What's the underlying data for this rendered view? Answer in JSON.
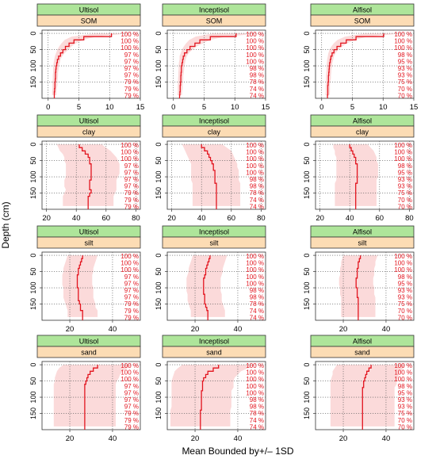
{
  "ylabel": "Depth (cm)",
  "xlabel": "Mean Bounded by+/– 1SD",
  "colors": {
    "strip_top": "#aee59a",
    "strip_var": "#fcdcb4",
    "band": "#fbdada",
    "line": "#e2141e",
    "pct_text": "#e2141e",
    "grid": "#555555"
  },
  "chart_data": {
    "type": "line",
    "orientation": "depth-profile",
    "ylabel": "Depth (cm)",
    "xlabel": "Mean Bounded by+/– 1SD",
    "ylim": [
      200,
      -10
    ],
    "yticks": [
      0,
      50,
      100,
      150
    ],
    "soils": [
      "Ultisol",
      "Inceptisol",
      "Alfisol"
    ],
    "depths": [
      0,
      10,
      20,
      30,
      40,
      50,
      60,
      70,
      80,
      90,
      100,
      110,
      120,
      130,
      140,
      150,
      160,
      170,
      180,
      190
    ],
    "percent_labels": {
      "Ultisol": [
        "100 %",
        "100 %",
        "100 %",
        "97 %",
        "97 %",
        "97 %",
        "97 %",
        "79 %",
        "79 %",
        "79 %"
      ],
      "Inceptisol": [
        "100 %",
        "100 %",
        "100 %",
        "100 %",
        "100 %",
        "98 %",
        "98 %",
        "78 %",
        "74 %",
        "74 %"
      ],
      "Alfisol": [
        "100 %",
        "100 %",
        "100 %",
        "98 %",
        "95 %",
        "93 %",
        "93 %",
        "75 %",
        "70 %",
        "70 %"
      ]
    },
    "panels": [
      {
        "variable": "SOM",
        "xlim": [
          -1,
          15
        ],
        "xticks": [
          0,
          5,
          10,
          15
        ],
        "series": [
          {
            "soil": "Ultisol",
            "mean": [
              10.3,
              5.8,
              4.2,
              3.4,
              2.8,
              2.4,
              2.0,
              1.7,
              1.5,
              1.4,
              1.3,
              1.25,
              1.2,
              1.2,
              1.15,
              1.1,
              1.1,
              1.05,
              1.0,
              1.0
            ],
            "lower": [
              7.6,
              3.8,
              2.7,
              2.2,
              1.8,
              1.5,
              1.3,
              1.1,
              1.0,
              0.9,
              0.85,
              0.8,
              0.8,
              0.75,
              0.75,
              0.7,
              0.7,
              0.7,
              0.65,
              0.65
            ],
            "upper": [
              13.0,
              7.8,
              5.7,
              4.6,
              3.8,
              3.3,
              2.7,
              2.3,
              2.0,
              1.9,
              1.75,
              1.7,
              1.6,
              1.6,
              1.55,
              1.5,
              1.5,
              1.4,
              1.35,
              1.35
            ]
          },
          {
            "soil": "Inceptisol",
            "mean": [
              10.2,
              6.0,
              4.3,
              3.5,
              2.7,
              2.2,
              1.8,
              1.6,
              1.5,
              1.4,
              1.3,
              1.3,
              1.25,
              1.2,
              1.2,
              1.15,
              1.1,
              1.1,
              1.05,
              1.0
            ],
            "lower": [
              6.5,
              3.6,
              2.6,
              2.1,
              1.7,
              1.4,
              1.2,
              1.0,
              1.0,
              0.9,
              0.85,
              0.85,
              0.8,
              0.8,
              0.75,
              0.75,
              0.7,
              0.7,
              0.7,
              0.65
            ],
            "upper": [
              14.0,
              8.5,
              6.0,
              4.9,
              3.8,
              3.1,
              2.5,
              2.2,
              2.0,
              1.9,
              1.8,
              1.75,
              1.7,
              1.6,
              1.6,
              1.55,
              1.5,
              1.5,
              1.4,
              1.4
            ]
          },
          {
            "soil": "Alfisol",
            "mean": [
              10.1,
              5.6,
              4.0,
              3.1,
              2.5,
              2.0,
              1.7,
              1.5,
              1.4,
              1.3,
              1.25,
              1.2,
              1.15,
              1.1,
              1.1,
              1.05,
              1.0,
              1.0,
              1.0,
              0.95
            ],
            "lower": [
              7.0,
              3.8,
              2.6,
              2.0,
              1.6,
              1.3,
              1.1,
              1.0,
              0.9,
              0.85,
              0.8,
              0.8,
              0.75,
              0.7,
              0.7,
              0.7,
              0.65,
              0.65,
              0.65,
              0.6
            ],
            "upper": [
              13.2,
              7.4,
              5.4,
              4.2,
              3.4,
              2.7,
              2.3,
              2.0,
              1.9,
              1.75,
              1.7,
              1.6,
              1.55,
              1.5,
              1.5,
              1.4,
              1.35,
              1.35,
              1.35,
              1.3
            ]
          }
        ]
      },
      {
        "variable": "clay",
        "xlim": [
          17,
          83
        ],
        "xticks": [
          20,
          40,
          60,
          80
        ],
        "series": [
          {
            "soil": "Ultisol",
            "mean": [
              42,
              44,
              46,
              48,
              49,
              49,
              50,
              50,
              50,
              50,
              50,
              49,
              49,
              49,
              50,
              49,
              48,
              48,
              48,
              48
            ],
            "lower": [
              27,
              28,
              29,
              31,
              32,
              32,
              33,
              33,
              33,
              33,
              33,
              32,
              32,
              32,
              33,
              32,
              31,
              31,
              31,
              31
            ],
            "upper": [
              57,
              60,
              63,
              65,
              67,
              68,
              69,
              69,
              69,
              69,
              68,
              67,
              67,
              67,
              67,
              66,
              65,
              65,
              65,
              65
            ]
          },
          {
            "soil": "Inceptisol",
            "mean": [
              40,
              42,
              44,
              45,
              46,
              47,
              48,
              48,
              49,
              49,
              49,
              49,
              50,
              50,
              50,
              50,
              50,
              50,
              50,
              50
            ],
            "lower": [
              27,
              28,
              29,
              30,
              31,
              32,
              33,
              33,
              33,
              33,
              33,
              33,
              34,
              34,
              34,
              34,
              34,
              34,
              34,
              34
            ],
            "upper": [
              54,
              57,
              60,
              61,
              62,
              63,
              64,
              64,
              65,
              65,
              65,
              65,
              66,
              66,
              66,
              66,
              66,
              66,
              66,
              66
            ]
          },
          {
            "soil": "Alfisol",
            "mean": [
              40,
              41,
              42,
              43,
              44,
              44,
              45,
              45,
              45,
              45,
              45,
              45,
              44,
              44,
              44,
              44,
              44,
              44,
              44,
              44
            ],
            "lower": [
              29,
              29,
              30,
              30,
              31,
              31,
              31,
              31,
              31,
              31,
              31,
              31,
              30,
              30,
              30,
              30,
              30,
              30,
              30,
              30
            ],
            "upper": [
              52,
              54,
              56,
              57,
              58,
              58,
              59,
              59,
              59,
              59,
              59,
              58,
              58,
              58,
              58,
              58,
              58,
              58,
              58,
              58
            ]
          }
        ]
      },
      {
        "variable": "silt",
        "xlim": [
          7,
          53
        ],
        "xticks": [
          20,
          40
        ],
        "series": [
          {
            "soil": "Ultisol",
            "mean": [
              26,
              25.5,
              25,
              24.5,
              24,
              24,
              23.5,
              23.5,
              23.5,
              23.5,
              24,
              24,
              24,
              24,
              24.5,
              25,
              25,
              26,
              26,
              26
            ],
            "lower": [
              19,
              18.5,
              18,
              17.5,
              17,
              17,
              16.5,
              16.5,
              16.5,
              16.5,
              17,
              17,
              17,
              17,
              17.5,
              18,
              18.5,
              19,
              19,
              19
            ],
            "upper": [
              33,
              32.5,
              32,
              31.5,
              31,
              31,
              30.5,
              30.5,
              30.5,
              30.5,
              31,
              31,
              31,
              31,
              31.5,
              32,
              32,
              33,
              33,
              33
            ]
          },
          {
            "soil": "Inceptisol",
            "mean": [
              27,
              26.5,
              26,
              25.5,
              25,
              25,
              24.5,
              24,
              24,
              24,
              24,
              24,
              24.5,
              24.5,
              24.5,
              25,
              25.5,
              26,
              26,
              26
            ],
            "lower": [
              19,
              18.5,
              18,
              17.5,
              17,
              17,
              16.5,
              16,
              16,
              16,
              16,
              16,
              16.5,
              16.5,
              16.5,
              17,
              17.5,
              18,
              18,
              18
            ],
            "upper": [
              35,
              34.5,
              34,
              33.5,
              33,
              33,
              32.5,
              32,
              32,
              32,
              32,
              32,
              32.5,
              32.5,
              32.5,
              33,
              33.5,
              34,
              34,
              34
            ]
          },
          {
            "soil": "Alfisol",
            "mean": [
              28,
              27.5,
              27,
              27,
              26.5,
              26.5,
              26.5,
              26,
              26,
              26,
              26.5,
              26.5,
              26.5,
              27,
              27,
              27,
              27,
              27,
              27,
              27
            ],
            "lower": [
              20,
              19.5,
              19,
              19,
              18.5,
              18.5,
              18.5,
              18,
              18,
              18,
              18.5,
              18.5,
              18.5,
              19,
              19,
              19,
              19,
              19,
              19,
              19
            ],
            "upper": [
              36,
              35.5,
              35,
              35,
              34.5,
              34.5,
              34.5,
              34,
              34,
              34,
              34.5,
              34.5,
              34.5,
              35,
              35,
              35,
              35,
              35,
              35,
              35
            ]
          }
        ]
      },
      {
        "variable": "sand",
        "xlim": [
          7,
          53
        ],
        "xticks": [
          20,
          40
        ],
        "series": [
          {
            "soil": "Ultisol",
            "mean": [
              33,
              31,
              29.5,
              28.5,
              28,
              27.5,
              27,
              27,
              27,
              27,
              27,
              27,
              27,
              27,
              27,
              27,
              27,
              27,
              27,
              27
            ],
            "lower": [
              17,
              15,
              14,
              13.5,
              13,
              13,
              12.5,
              12.5,
              12.5,
              12.5,
              12.5,
              12.5,
              12.5,
              12.5,
              12.5,
              12.5,
              12.5,
              12.5,
              12.5,
              12.5
            ],
            "upper": [
              49,
              47,
              45,
              43.5,
              43,
              42,
              41.5,
              41.5,
              41.5,
              41.5,
              41.5,
              41.5,
              41.5,
              41.5,
              41.5,
              41.5,
              41.5,
              41.5,
              41.5,
              41.5
            ]
          },
          {
            "soil": "Inceptisol",
            "mean": [
              31,
              28.5,
              26,
              25,
              24,
              23.5,
              23.5,
              23.5,
              23,
              23,
              23,
              23,
              23,
              23,
              22.5,
              22.5,
              22.5,
              22.5,
              22.5,
              22.5
            ],
            "lower": [
              14,
              12,
              10.5,
              10,
              9.5,
              9,
              9,
              9,
              9,
              9,
              9,
              9,
              9,
              9,
              8.5,
              8.5,
              8.5,
              8.5,
              8.5,
              8.5
            ],
            "upper": [
              48,
              45,
              41.5,
              40,
              38.5,
              38,
              38,
              38,
              37,
              37,
              37,
              37,
              37,
              37,
              36.5,
              36.5,
              36.5,
              36.5,
              36.5,
              36.5
            ]
          },
          {
            "soil": "Alfisol",
            "mean": [
              33,
              32,
              31,
              30.5,
              30,
              29.5,
              29.5,
              29,
              29,
              29,
              29,
              29,
              29,
              29,
              29,
              29,
              29,
              29,
              29,
              29
            ],
            "lower": [
              17,
              16,
              15,
              15,
              14.5,
              14,
              14,
              14,
              14,
              14,
              14,
              14,
              14,
              14,
              14,
              14,
              14,
              14,
              14,
              14
            ],
            "upper": [
              49,
              48,
              47,
              46,
              45.5,
              45,
              45,
              44,
              44,
              44,
              44,
              44,
              44,
              44,
              44,
              44,
              44,
              44,
              44,
              44
            ]
          }
        ]
      }
    ]
  }
}
